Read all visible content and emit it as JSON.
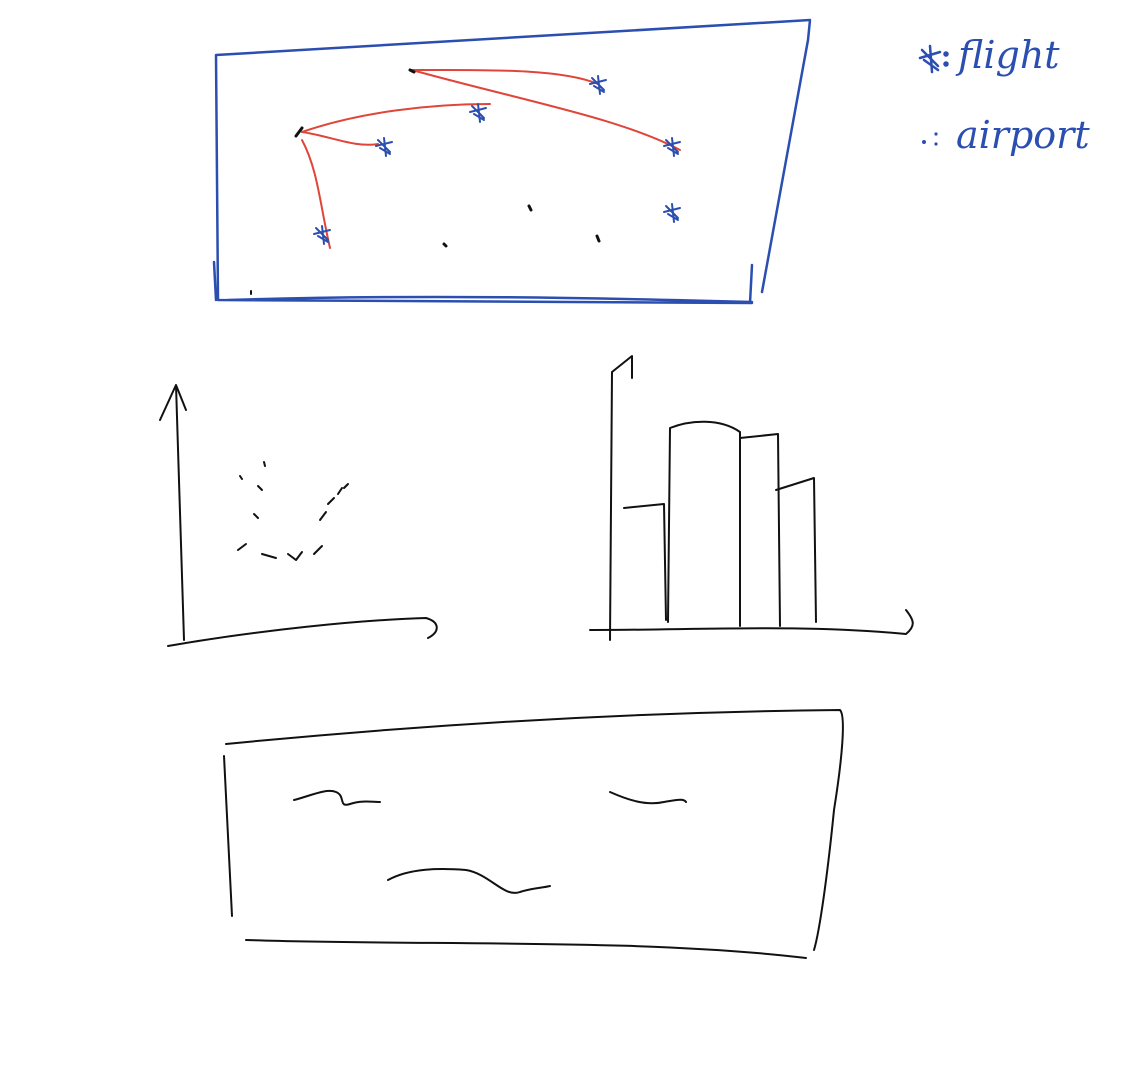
{
  "legend": {
    "flight_label": "flight",
    "airport_label": "airport",
    "flight_glyph": "flight-icon",
    "airport_glyph": "airport-dot"
  },
  "colors": {
    "map_border": "#2b4fb0",
    "route_line": "#e0453a",
    "sketch_ink": "#111111"
  },
  "panels": {
    "map": {
      "kind": "map",
      "routes": 5,
      "flights": 6,
      "airports": 7
    },
    "scatter": {
      "kind": "scatter"
    },
    "bar": {
      "kind": "bar",
      "bars": 4
    },
    "text_box": {
      "kind": "text-box"
    }
  }
}
